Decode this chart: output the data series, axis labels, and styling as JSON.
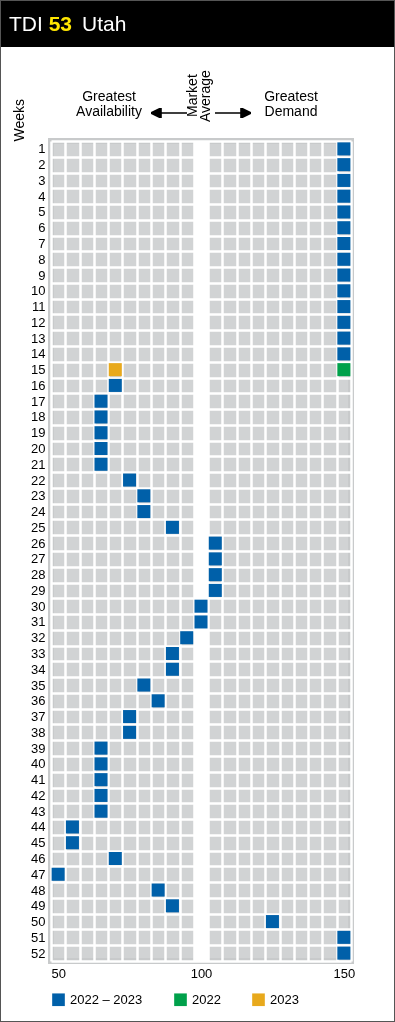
{
  "chart_data": {
    "type": "scatter",
    "title": "TDI 53",
    "subtitle": "Utah",
    "orientation": "horizontal",
    "marker": "square",
    "grid": true,
    "legend": "bottom",
    "ylabel": "Weeks",
    "annotations": [
      "Greatest Availability",
      "Greatest Demand"
    ],
    "ref_lines": [
      {
        "axis": "x",
        "value": 100,
        "label": "Market Average",
        "color": "#ffffff"
      }
    ],
    "categories": [
      "1",
      "2",
      "3",
      "4",
      "5",
      "6",
      "7",
      "8",
      "9",
      "10",
      "11",
      "12",
      "13",
      "14",
      "15",
      "16",
      "17",
      "18",
      "19",
      "20",
      "21",
      "22",
      "23",
      "24",
      "25",
      "26",
      "27",
      "28",
      "29",
      "30",
      "31",
      "32",
      "33",
      "34",
      "35",
      "36",
      "37",
      "38",
      "39",
      "40",
      "41",
      "42",
      "43",
      "44",
      "45",
      "46",
      "47",
      "48",
      "49",
      "50",
      "51",
      "52"
    ],
    "xlim": [
      47.5,
      152.5
    ],
    "xticks": [
      50,
      100,
      150
    ],
    "series": [
      {
        "name": "2022 – 2023",
        "color": "#0060a9",
        "values": [
          150,
          150,
          150,
          150,
          150,
          150,
          150,
          150,
          150,
          150,
          150,
          150,
          150,
          150,
          null,
          70,
          65,
          65,
          65,
          65,
          65,
          75,
          80,
          80,
          90,
          105,
          105,
          105,
          105,
          100,
          100,
          95,
          90,
          90,
          80,
          85,
          75,
          75,
          65,
          65,
          65,
          65,
          65,
          55,
          55,
          70,
          50,
          85,
          90,
          125,
          150,
          150
        ]
      },
      {
        "name": "2022",
        "color": "#00a14b",
        "values": [
          null,
          null,
          null,
          null,
          null,
          null,
          null,
          null,
          null,
          null,
          null,
          null,
          null,
          null,
          150,
          null,
          null,
          null,
          null,
          null,
          null,
          null,
          null,
          null,
          null,
          null,
          null,
          null,
          null,
          null,
          null,
          null,
          null,
          null,
          null,
          null,
          null,
          null,
          null,
          null,
          null,
          null,
          null,
          null,
          null,
          null,
          null,
          null,
          null,
          null,
          null,
          null
        ]
      },
      {
        "name": "2023",
        "color": "#e8a91c",
        "values": [
          null,
          null,
          null,
          null,
          null,
          null,
          null,
          null,
          null,
          null,
          null,
          null,
          null,
          null,
          70,
          null,
          null,
          null,
          null,
          null,
          null,
          null,
          null,
          null,
          null,
          null,
          null,
          null,
          null,
          null,
          null,
          null,
          null,
          null,
          null,
          null,
          null,
          null,
          null,
          null,
          null,
          null,
          null,
          null,
          null,
          null,
          null,
          null,
          null,
          null,
          null,
          null
        ]
      }
    ]
  }
}
